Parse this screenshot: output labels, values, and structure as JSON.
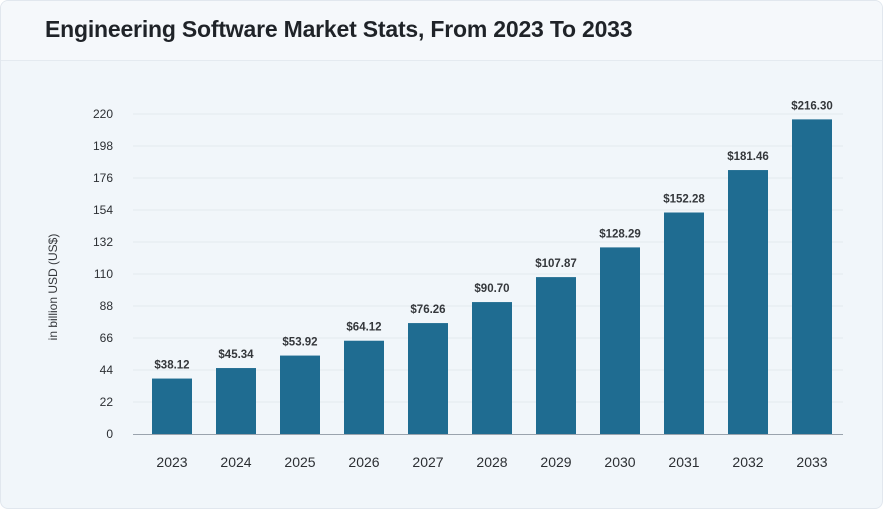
{
  "header": {
    "title": "Engineering Software Market Stats, From 2023 To 2033"
  },
  "colors": {
    "bar": "#1f6c91",
    "background": "#f1f6fa",
    "grid": "#e3e9ef"
  },
  "chart_data": {
    "type": "bar",
    "title": "Engineering Software Market Stats, From 2023 To 2033",
    "xlabel": "",
    "ylabel": "in billion USD (US$)",
    "categories": [
      "2023",
      "2024",
      "2025",
      "2026",
      "2027",
      "2028",
      "2029",
      "2030",
      "2031",
      "2032",
      "2033"
    ],
    "values": [
      38.12,
      45.34,
      53.92,
      64.12,
      76.26,
      90.7,
      107.87,
      128.29,
      152.28,
      181.46,
      216.3
    ],
    "data_labels": [
      "$38.12",
      "$45.34",
      "$53.92",
      "$64.12",
      "$76.26",
      "$90.70",
      "$107.87",
      "$128.29",
      "$152.28",
      "$181.46",
      "$216.30"
    ],
    "yticks": [
      0,
      22,
      44,
      66,
      88,
      110,
      132,
      154,
      176,
      198,
      220
    ],
    "ylim": [
      0,
      220
    ],
    "grid": true,
    "legend": "none"
  }
}
